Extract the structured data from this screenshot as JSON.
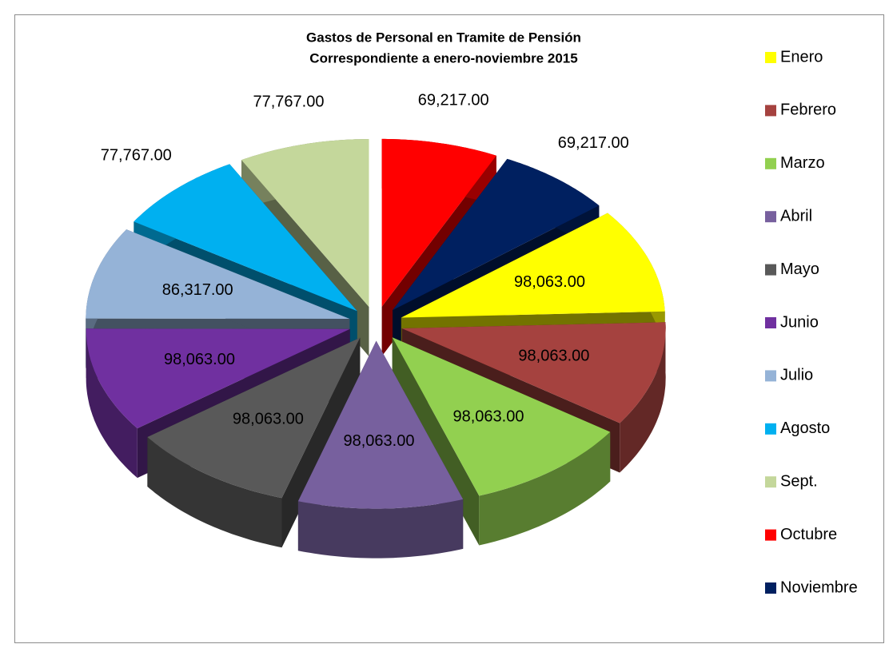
{
  "chart_data": {
    "type": "pie3d",
    "title": [
      "Gastos de Personal en Tramite de Pensión",
      "Correspondiente a enero-noviembre 2015"
    ],
    "categories": [
      "Enero",
      "Febrero",
      "Marzo",
      "Abril",
      "Mayo",
      "Junio",
      "Julio",
      "Agosto",
      "Sept.",
      "Octubre",
      "Noviembre"
    ],
    "values": [
      98063,
      98063,
      98063,
      98063,
      98063,
      98063,
      86317,
      77767,
      77767,
      69217,
      69217
    ],
    "value_labels": [
      "98,063.00",
      "98,063.00",
      "98,063.00",
      "98,063.00",
      "98,063.00",
      "98,063.00",
      "86,317.00",
      "77,767.00",
      "77,767.00",
      "69,217.00",
      "69,217.00"
    ],
    "colors": [
      "#ffff00",
      "#a5423f",
      "#92d050",
      "#77609e",
      "#595959",
      "#7030a0",
      "#95b3d7",
      "#00b0f0",
      "#c4d79b",
      "#ff0000",
      "#002060"
    ],
    "legend": "right"
  }
}
